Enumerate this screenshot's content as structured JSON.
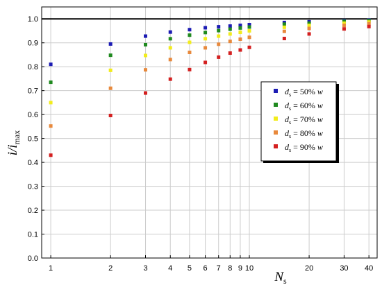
{
  "chart_data": {
    "type": "scatter",
    "x_scale": "log",
    "xlim": [
      0.9,
      44
    ],
    "ylim": [
      0.0,
      1.05
    ],
    "x_ticks": [
      1,
      2,
      3,
      4,
      5,
      6,
      7,
      8,
      9,
      10,
      20,
      30,
      40
    ],
    "y_ticks": [
      0.0,
      0.1,
      0.2,
      0.3,
      0.4,
      0.5,
      0.6,
      0.7,
      0.8,
      0.9,
      1.0
    ],
    "xlabel": {
      "main": "N",
      "sub": "s"
    },
    "ylabel": {
      "main": "i/i",
      "sub": "max"
    },
    "reference_line_y": 1.0,
    "grid": true,
    "legend_placement": "right-middle",
    "x": [
      1,
      2,
      3,
      4,
      5,
      6,
      7,
      8,
      9,
      10,
      15,
      20,
      30,
      40
    ],
    "series": [
      {
        "name": {
          "d": "d",
          "sub": "s",
          "rest": " = 50% ",
          "w": "w"
        },
        "color": "#1c1cb4",
        "values": [
          0.81,
          0.895,
          0.928,
          0.945,
          0.955,
          0.963,
          0.967,
          0.97,
          0.973,
          0.976,
          0.985,
          0.988,
          0.993,
          0.995
        ]
      },
      {
        "name": {
          "d": "d",
          "sub": "s",
          "rest": " = 60% ",
          "w": "w"
        },
        "color": "#1f8a1f",
        "values": [
          0.735,
          0.848,
          0.892,
          0.917,
          0.932,
          0.943,
          0.951,
          0.957,
          0.962,
          0.966,
          0.978,
          0.982,
          0.99,
          0.993
        ]
      },
      {
        "name": {
          "d": "d",
          "sub": "s",
          "rest": " = 70% ",
          "w": "w"
        },
        "color": "#f2ec1c",
        "values": [
          0.65,
          0.785,
          0.847,
          0.879,
          0.902,
          0.917,
          0.928,
          0.937,
          0.944,
          0.95,
          0.965,
          0.973,
          0.982,
          0.987
        ]
      },
      {
        "name": {
          "d": "d",
          "sub": "s",
          "rest": " = 80% ",
          "w": "w"
        },
        "color": "#e8893c",
        "values": [
          0.552,
          0.71,
          0.787,
          0.83,
          0.86,
          0.879,
          0.894,
          0.906,
          0.915,
          0.923,
          0.948,
          0.96,
          0.973,
          0.98
        ]
      },
      {
        "name": {
          "d": "d",
          "sub": "s",
          "rest": " = 90% ",
          "w": "w"
        },
        "color": "#d42020",
        "values": [
          0.43,
          0.596,
          0.69,
          0.748,
          0.788,
          0.818,
          0.84,
          0.857,
          0.87,
          0.881,
          0.918,
          0.937,
          0.958,
          0.968
        ]
      }
    ]
  }
}
